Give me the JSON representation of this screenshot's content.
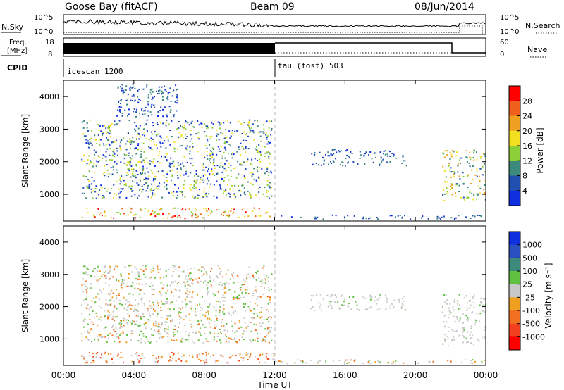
{
  "header": {
    "station": "Goose Bay (fitACF)",
    "beam": "Beam 09",
    "date": "08/Jun/2014"
  },
  "param_panel": {
    "nsky_label": "N.Sky",
    "nsearch_label": "N.Search",
    "noise_ticks": [
      "10^5",
      "10^0"
    ],
    "freq_label_line1": "Freq.",
    "freq_label_line2": "[MHz]",
    "freq_ticks": [
      "18",
      "8"
    ],
    "nave_label": "Nave",
    "nave_ticks": [
      "60",
      "0"
    ],
    "cpid_label": "CPID",
    "cpid_entries": [
      "icescan 1200",
      "tau (fost) 503"
    ]
  },
  "chart_data": [
    {
      "type": "heatmap",
      "name_shown": "power",
      "xlabel": "",
      "ylabel": "Slant Range [km]",
      "xlim": [
        0,
        24
      ],
      "ylim": [
        180,
        4500
      ],
      "yticks": [
        1000,
        2000,
        3000,
        4000
      ],
      "colorbar_label": "Power [dB]",
      "colorbar_ticks": [
        "28",
        "24",
        "20",
        "16",
        "12",
        "8",
        "4"
      ],
      "colorbar_colors": [
        "#ff0000",
        "#f0601c",
        "#f0a020",
        "#f2e020",
        "#8ccf36",
        "#3c8a7c",
        "#2050b0",
        "#1030e0"
      ],
      "scatter_regions": [
        {
          "t": [
            1.0,
            12.0
          ],
          "r": [
            280,
            600
          ],
          "level": "high"
        },
        {
          "t": [
            12.0,
            24.0
          ],
          "r": [
            260,
            380
          ],
          "level": "low"
        },
        {
          "t": [
            1.0,
            11.8
          ],
          "r": [
            900,
            3300
          ],
          "level": "mid"
        },
        {
          "t": [
            3.0,
            6.5
          ],
          "r": [
            3400,
            4400
          ],
          "level": "low"
        },
        {
          "t": [
            14.0,
            19.5
          ],
          "r": [
            1900,
            2400
          ],
          "level": "low"
        },
        {
          "t": [
            21.5,
            24.0
          ],
          "r": [
            800,
            2400
          ],
          "level": "mixed"
        }
      ]
    },
    {
      "type": "heatmap",
      "name_shown": "velocity",
      "xlabel": "Time UT",
      "ylabel": "Slant Range [km]",
      "xlim": [
        0,
        24
      ],
      "ylim": [
        180,
        4500
      ],
      "yticks": [
        1000,
        2000,
        3000,
        4000
      ],
      "xticks": [
        "00:00",
        "04:00",
        "08:00",
        "12:00",
        "16:00",
        "20:00",
        "00:00"
      ],
      "colorbar_label": "Velocity [m s⁻¹]",
      "colorbar_ticks": [
        "1000",
        "500",
        "100",
        "25",
        "-25",
        "-100",
        "-500",
        "-1000"
      ],
      "colorbar_colors": [
        "#1030e0",
        "#2a4fc0",
        "#3c8a7c",
        "#60c040",
        "#c8c8c8",
        "#f0a020",
        "#f07020",
        "#f04020",
        "#ff0000"
      ],
      "scatter_regions": [
        {
          "t": [
            1.0,
            12.0
          ],
          "r": [
            280,
            600
          ],
          "level": "approaching"
        },
        {
          "t": [
            12.0,
            24.0
          ],
          "r": [
            260,
            380
          ],
          "level": "mixed"
        },
        {
          "t": [
            1.0,
            11.8
          ],
          "r": [
            900,
            3300
          ],
          "level": "mixed"
        },
        {
          "t": [
            14.0,
            19.5
          ],
          "r": [
            1900,
            2400
          ],
          "level": "gray"
        },
        {
          "t": [
            21.5,
            24.0
          ],
          "r": [
            800,
            2400
          ],
          "level": "gray"
        }
      ]
    }
  ]
}
